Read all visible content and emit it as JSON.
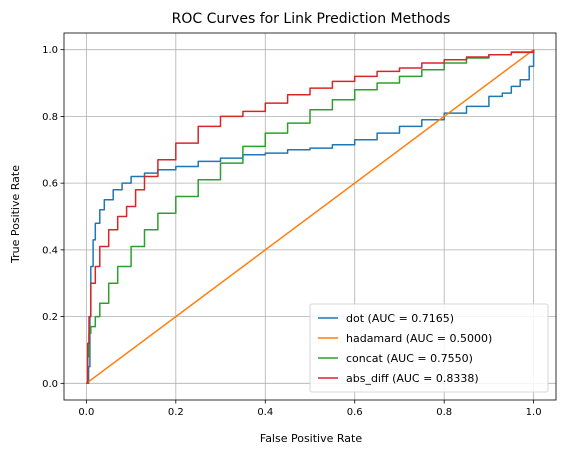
{
  "chart_data": {
    "type": "line",
    "title": "ROC Curves for Link Prediction Methods",
    "xlabel": "False Positive Rate",
    "ylabel": "True Positive Rate",
    "xlim": [
      -0.05,
      1.05
    ],
    "ylim": [
      -0.05,
      1.05
    ],
    "xticks": [
      "0.0",
      "0.2",
      "0.4",
      "0.6",
      "0.8",
      "1.0"
    ],
    "yticks": [
      "0.0",
      "0.2",
      "0.4",
      "0.6",
      "0.8",
      "1.0"
    ],
    "grid": true,
    "legend_position": "lower-right",
    "series": [
      {
        "name": "dot (AUC = 0.7165)",
        "color": "#1f77b4",
        "points": [
          [
            0,
            0
          ],
          [
            0.005,
            0.05
          ],
          [
            0.008,
            0.2
          ],
          [
            0.01,
            0.35
          ],
          [
            0.015,
            0.43
          ],
          [
            0.02,
            0.48
          ],
          [
            0.03,
            0.52
          ],
          [
            0.04,
            0.55
          ],
          [
            0.06,
            0.58
          ],
          [
            0.08,
            0.6
          ],
          [
            0.1,
            0.62
          ],
          [
            0.13,
            0.63
          ],
          [
            0.16,
            0.64
          ],
          [
            0.2,
            0.65
          ],
          [
            0.25,
            0.665
          ],
          [
            0.3,
            0.675
          ],
          [
            0.35,
            0.685
          ],
          [
            0.4,
            0.69
          ],
          [
            0.45,
            0.7
          ],
          [
            0.5,
            0.705
          ],
          [
            0.55,
            0.715
          ],
          [
            0.6,
            0.73
          ],
          [
            0.65,
            0.75
          ],
          [
            0.7,
            0.77
          ],
          [
            0.75,
            0.79
          ],
          [
            0.8,
            0.81
          ],
          [
            0.85,
            0.83
          ],
          [
            0.9,
            0.86
          ],
          [
            0.93,
            0.87
          ],
          [
            0.95,
            0.89
          ],
          [
            0.97,
            0.91
          ],
          [
            0.99,
            0.95
          ],
          [
            1.0,
            1.0
          ]
        ]
      },
      {
        "name": "hadamard (AUC = 0.5000)",
        "color": "#ff7f0e",
        "points": [
          [
            0,
            0
          ],
          [
            1,
            1
          ]
        ]
      },
      {
        "name": "concat (AUC = 0.7550)",
        "color": "#2ca02c",
        "points": [
          [
            0,
            0
          ],
          [
            0.003,
            0.08
          ],
          [
            0.006,
            0.15
          ],
          [
            0.01,
            0.17
          ],
          [
            0.02,
            0.2
          ],
          [
            0.03,
            0.24
          ],
          [
            0.05,
            0.3
          ],
          [
            0.07,
            0.35
          ],
          [
            0.1,
            0.41
          ],
          [
            0.13,
            0.46
          ],
          [
            0.16,
            0.51
          ],
          [
            0.2,
            0.56
          ],
          [
            0.25,
            0.61
          ],
          [
            0.3,
            0.66
          ],
          [
            0.35,
            0.71
          ],
          [
            0.4,
            0.75
          ],
          [
            0.45,
            0.78
          ],
          [
            0.5,
            0.82
          ],
          [
            0.55,
            0.85
          ],
          [
            0.6,
            0.88
          ],
          [
            0.65,
            0.9
          ],
          [
            0.7,
            0.92
          ],
          [
            0.75,
            0.94
          ],
          [
            0.8,
            0.96
          ],
          [
            0.85,
            0.975
          ],
          [
            0.9,
            0.985
          ],
          [
            0.95,
            0.993
          ],
          [
            1.0,
            1.0
          ]
        ]
      },
      {
        "name": "abs_diff (AUC = 0.8338)",
        "color": "#d62728",
        "points": [
          [
            0,
            0
          ],
          [
            0.003,
            0.12
          ],
          [
            0.006,
            0.2
          ],
          [
            0.01,
            0.3
          ],
          [
            0.02,
            0.35
          ],
          [
            0.03,
            0.41
          ],
          [
            0.05,
            0.46
          ],
          [
            0.07,
            0.5
          ],
          [
            0.09,
            0.53
          ],
          [
            0.11,
            0.58
          ],
          [
            0.13,
            0.62
          ],
          [
            0.16,
            0.67
          ],
          [
            0.2,
            0.72
          ],
          [
            0.25,
            0.77
          ],
          [
            0.3,
            0.8
          ],
          [
            0.35,
            0.815
          ],
          [
            0.4,
            0.84
          ],
          [
            0.45,
            0.865
          ],
          [
            0.5,
            0.885
          ],
          [
            0.55,
            0.905
          ],
          [
            0.6,
            0.92
          ],
          [
            0.65,
            0.935
          ],
          [
            0.7,
            0.945
          ],
          [
            0.75,
            0.96
          ],
          [
            0.8,
            0.97
          ],
          [
            0.85,
            0.978
          ],
          [
            0.9,
            0.985
          ],
          [
            0.95,
            0.992
          ],
          [
            1.0,
            1.0
          ]
        ]
      }
    ]
  }
}
